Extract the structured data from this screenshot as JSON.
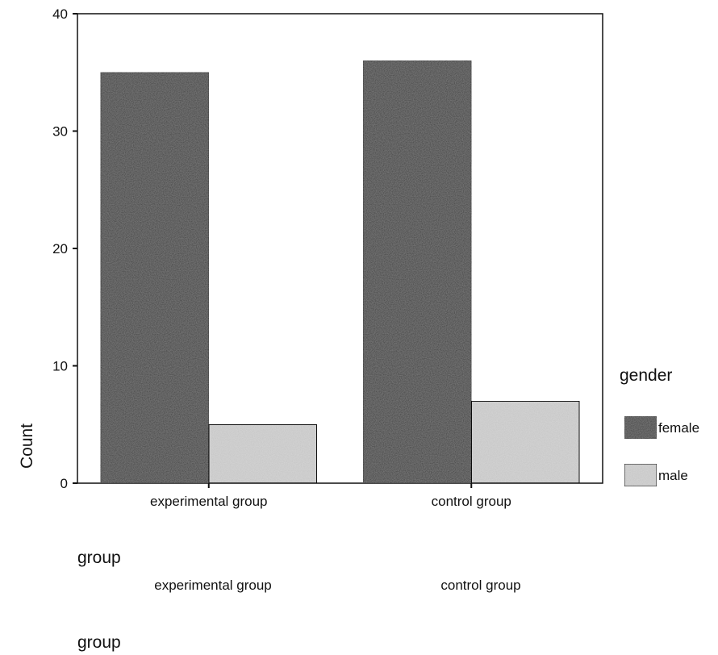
{
  "chart_data": {
    "type": "bar",
    "categories": [
      "experimental group",
      "control group"
    ],
    "series": [
      {
        "name": "female",
        "values": [
          35,
          36
        ],
        "color": "#3a3a3a"
      },
      {
        "name": "male",
        "values": [
          5,
          7
        ],
        "color": "#d6d6d6"
      }
    ],
    "xlabel": "group",
    "ylabel": "Count",
    "ylim": [
      0,
      40
    ],
    "yticks": [
      0,
      10,
      20,
      30,
      40
    ],
    "legend": {
      "title": "gender",
      "placement": "right"
    },
    "grid": false,
    "repeated_axis": {
      "categories": [
        "experimental group",
        "control group"
      ],
      "xlabel": "group"
    }
  }
}
